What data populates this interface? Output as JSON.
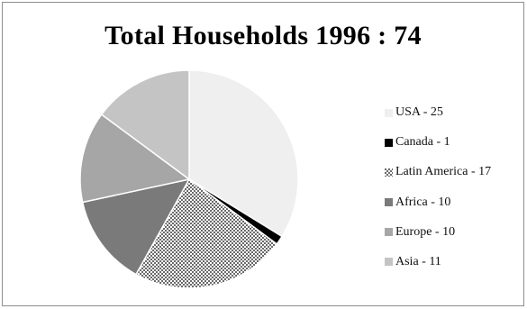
{
  "chart_data": {
    "type": "pie",
    "title": "Total Households 1996 : 74",
    "slices": [
      {
        "label": "USA - 25",
        "category": "USA",
        "value": 25,
        "color": "#efefef",
        "pattern": "solid"
      },
      {
        "label": "Canada - 1",
        "category": "Canada",
        "value": 1,
        "color": "#000000",
        "pattern": "solid"
      },
      {
        "label": "Latin America - 17",
        "category": "Latin America",
        "value": 17,
        "color": "#ffffff",
        "pattern": "dots"
      },
      {
        "label": "Africa - 10",
        "category": "Africa",
        "value": 10,
        "color": "#7a7a7a",
        "pattern": "solid"
      },
      {
        "label": "Europe - 10",
        "category": "Europe",
        "value": 10,
        "color": "#a6a6a6",
        "pattern": "solid"
      },
      {
        "label": "Asia - 11",
        "category": "Asia",
        "value": 11,
        "color": "#c4c4c4",
        "pattern": "solid"
      }
    ],
    "legend_position": "right"
  }
}
